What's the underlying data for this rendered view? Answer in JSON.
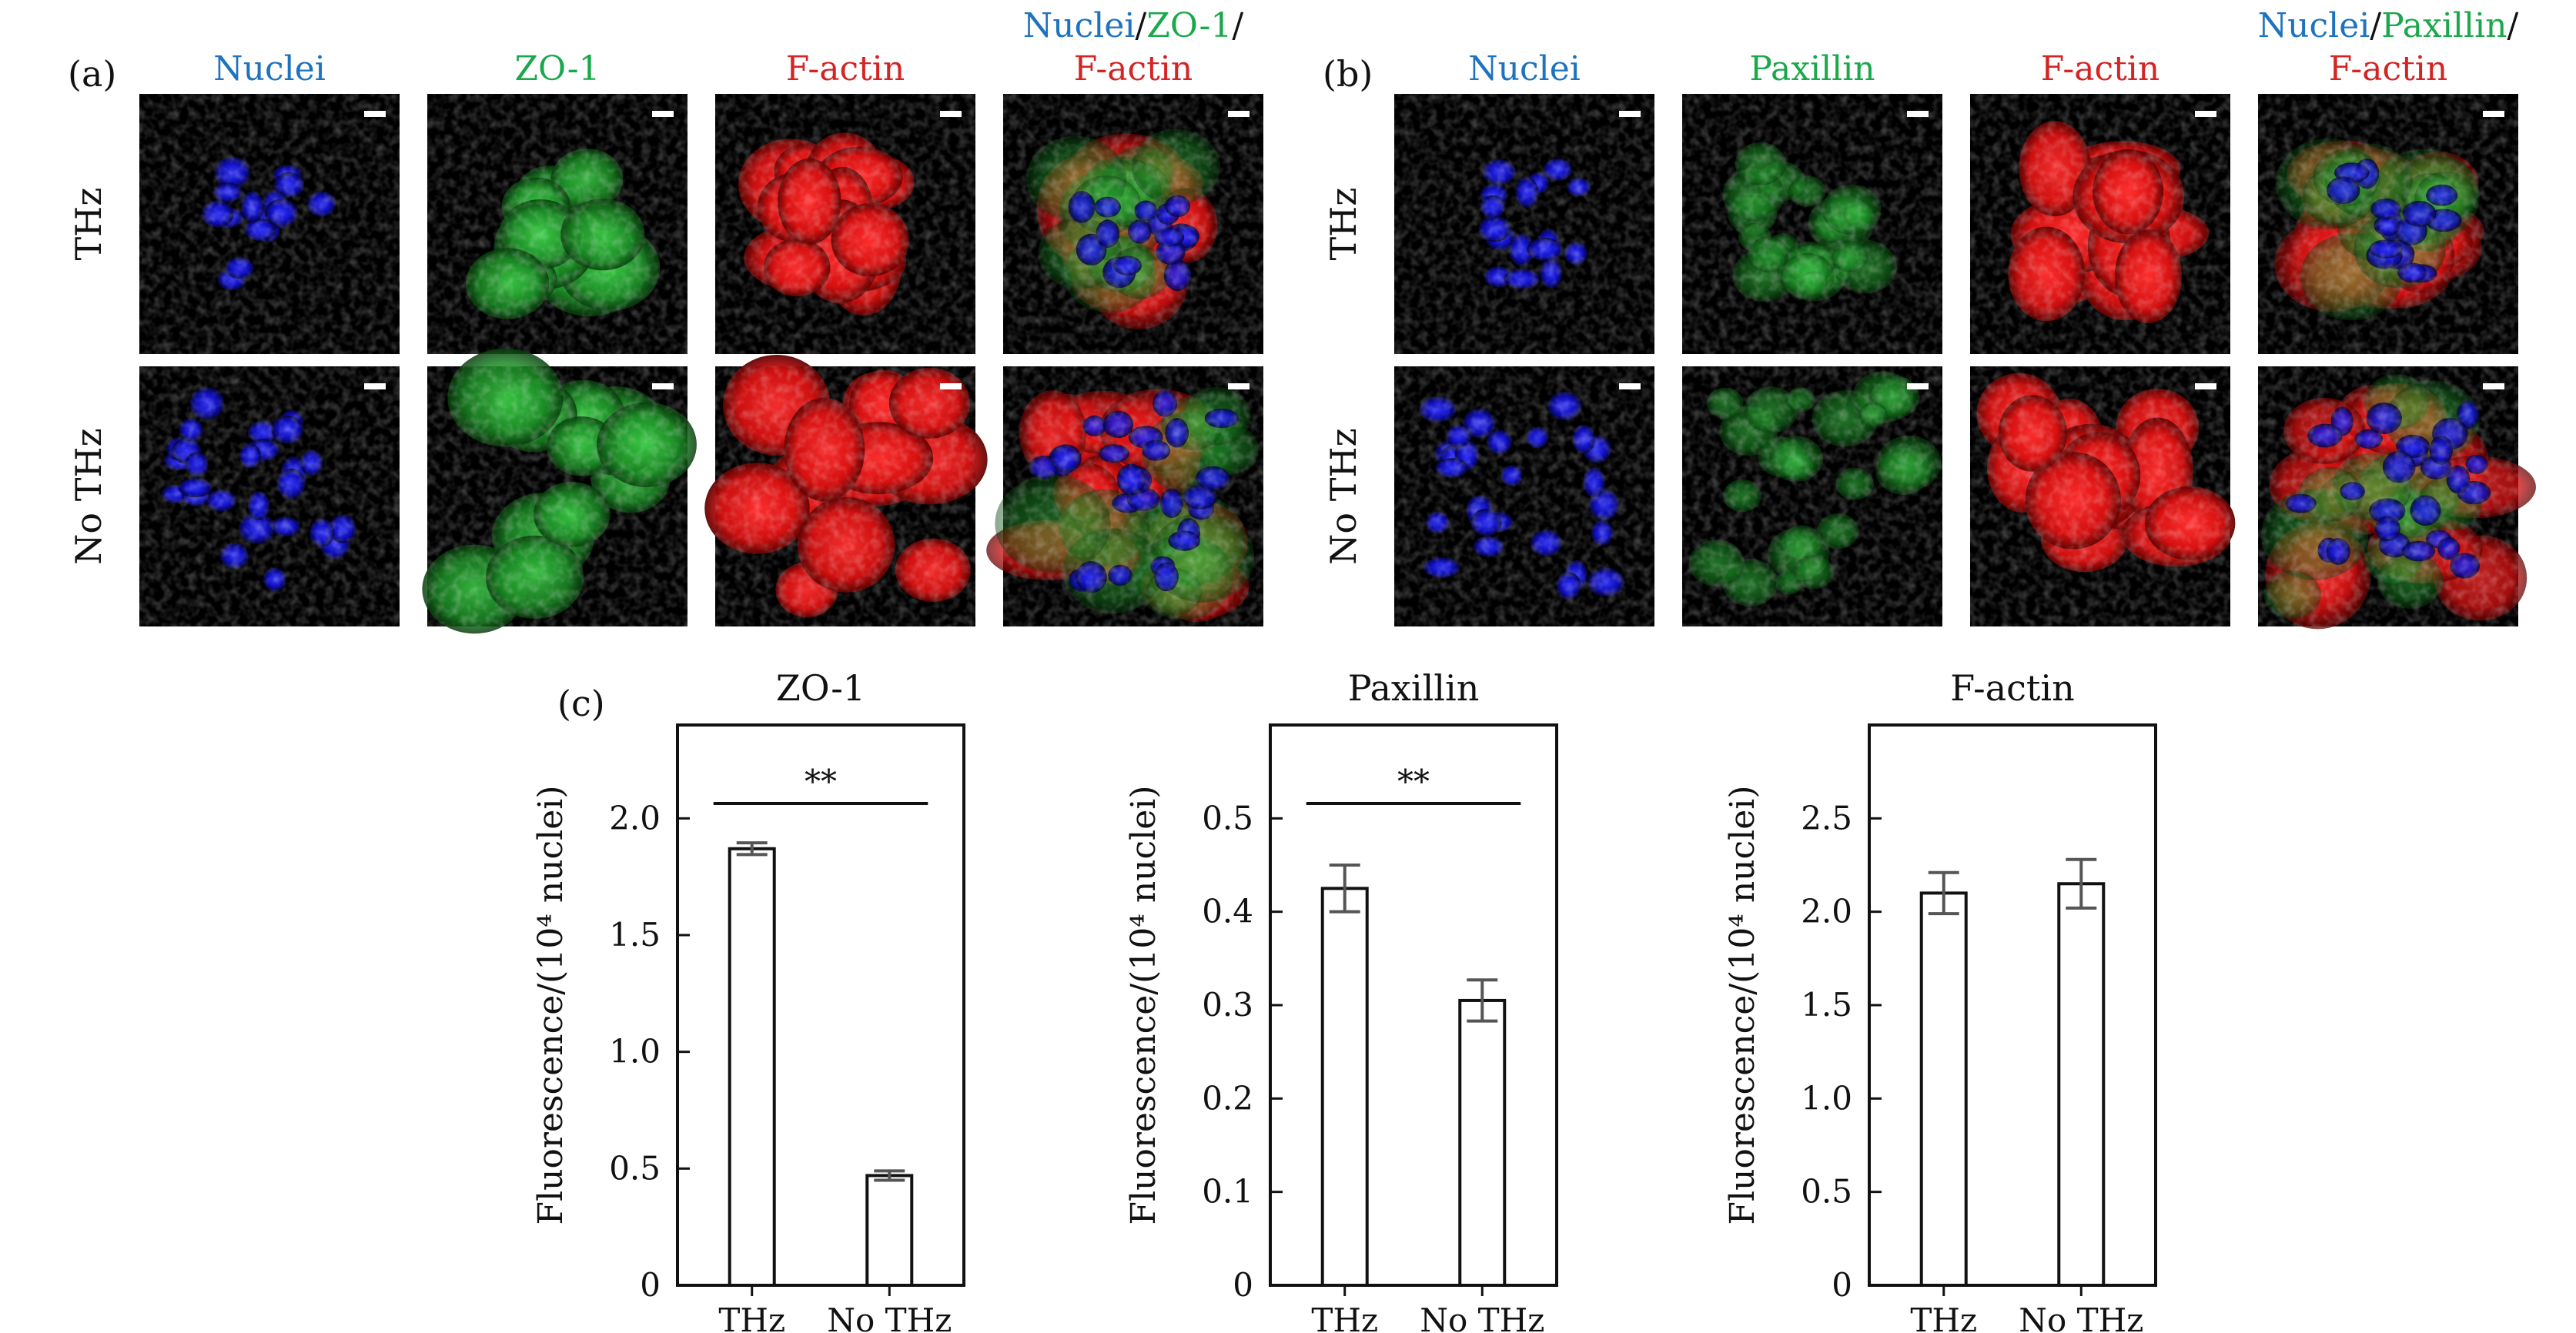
{
  "panel_a": {
    "label": "(a)",
    "columns": [
      {
        "parts": [
          {
            "text": "Nuclei",
            "color": "#1e73be"
          }
        ]
      },
      {
        "parts": [
          {
            "text": "ZO-1",
            "color": "#1aa84a"
          }
        ]
      },
      {
        "parts": [
          {
            "text": "F-actin",
            "color": "#d42424"
          }
        ]
      },
      {
        "parts": [
          {
            "text": "Nuclei",
            "color": "#1e73be"
          },
          {
            "text": "/",
            "color": "#111111"
          },
          {
            "text": "ZO-1",
            "color": "#1aa84a"
          },
          {
            "text": "/",
            "color": "#111111"
          }
        ],
        "second_line": {
          "text": "F-actin",
          "color": "#d42424"
        }
      }
    ],
    "rows": [
      "THz",
      "No THz"
    ],
    "channels": [
      "nuclei-blue",
      "zo1-green",
      "factin-red",
      "merge"
    ]
  },
  "panel_b": {
    "label": "(b)",
    "columns": [
      {
        "parts": [
          {
            "text": "Nuclei",
            "color": "#1e73be"
          }
        ]
      },
      {
        "parts": [
          {
            "text": "Paxillin",
            "color": "#1aa84a"
          }
        ]
      },
      {
        "parts": [
          {
            "text": "F-actin",
            "color": "#d42424"
          }
        ]
      },
      {
        "parts": [
          {
            "text": "Nuclei",
            "color": "#1e73be"
          },
          {
            "text": "/",
            "color": "#111111"
          },
          {
            "text": "Paxillin",
            "color": "#1aa84a"
          },
          {
            "text": "/",
            "color": "#111111"
          }
        ],
        "second_line": {
          "text": "F-actin",
          "color": "#d42424"
        }
      }
    ],
    "rows": [
      "THz",
      "No THz"
    ],
    "channels": [
      "nuclei-blue",
      "paxillin-green",
      "factin-red",
      "merge"
    ]
  },
  "panel_c_label": "(c)",
  "chart_data": [
    {
      "type": "bar",
      "title": "ZO-1",
      "ylabel": "Fluorescence/(10⁴ nuclei)",
      "categories": [
        "THz",
        "No THz"
      ],
      "values": [
        1.87,
        0.47
      ],
      "errors": [
        0.025,
        0.02
      ],
      "ylim": [
        0,
        2.4
      ],
      "yticks": [
        0,
        0.5,
        1.0,
        1.5,
        2.0
      ],
      "ytick_labels": [
        "0",
        "0.5",
        "1.0",
        "1.5",
        "2.0"
      ],
      "significance": "**"
    },
    {
      "type": "bar",
      "title": "Paxillin",
      "ylabel": "Fluorescence/(10⁴ nuclei)",
      "categories": [
        "THz",
        "No THz"
      ],
      "values": [
        0.425,
        0.305
      ],
      "errors": [
        0.025,
        0.022
      ],
      "ylim": [
        0,
        0.6
      ],
      "yticks": [
        0,
        0.1,
        0.2,
        0.3,
        0.4,
        0.5
      ],
      "ytick_labels": [
        "0",
        "0.1",
        "0.2",
        "0.3",
        "0.4",
        "0.5"
      ],
      "significance": "**"
    },
    {
      "type": "bar",
      "title": "F-actin",
      "ylabel": "Fluorescence/(10⁴ nuclei)",
      "categories": [
        "THz",
        "No THz"
      ],
      "values": [
        2.1,
        2.15
      ],
      "errors": [
        0.11,
        0.13
      ],
      "ylim": [
        0,
        3.0
      ],
      "yticks": [
        0,
        0.5,
        1.0,
        1.5,
        2.0,
        2.5
      ],
      "ytick_labels": [
        "0",
        "0.5",
        "1.0",
        "1.5",
        "2.0",
        "2.5"
      ],
      "significance": ""
    }
  ]
}
